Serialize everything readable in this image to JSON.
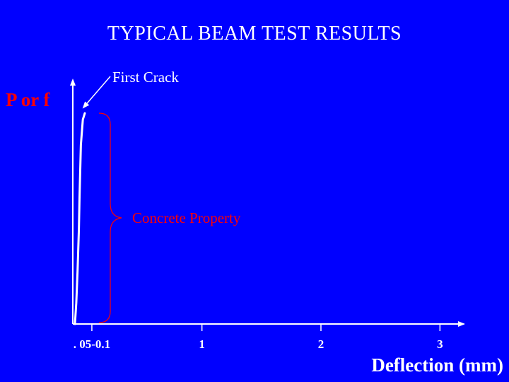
{
  "chart_data": {
    "type": "line",
    "title": "TYPICAL BEAM TEST RESULTS",
    "xlabel": "Deflection (mm)",
    "ylabel": "P or f",
    "ticks": [
      {
        "value": 0.075,
        "label": ". 05-0.1"
      },
      {
        "value": 1,
        "label": "1"
      },
      {
        "value": 2,
        "label": "2"
      },
      {
        "value": 3,
        "label": "3"
      }
    ],
    "series": [
      {
        "x": [
          0,
          0.01,
          0.02,
          0.03,
          0.035,
          0.045,
          0.06,
          0.075
        ],
        "y": [
          0,
          0.1,
          0.25,
          0.45,
          0.6,
          0.85,
          0.97,
          1.0
        ]
      }
    ],
    "xlim": [
      -0.085,
      3.2
    ],
    "ylim": [
      0,
      1
    ],
    "annotations": [
      {
        "text": "First Crack",
        "color": "#FFFFFF"
      },
      {
        "text": "Concrete Property",
        "color": "#FF0000"
      }
    ],
    "grid": false,
    "colors": {
      "background": "#0000FF",
      "curve": "#FFFFFF",
      "axes": "#FFFFFF",
      "brace": "#FF0000",
      "ylabel": "#FF0000",
      "annotation_red": "#FF0000"
    }
  }
}
